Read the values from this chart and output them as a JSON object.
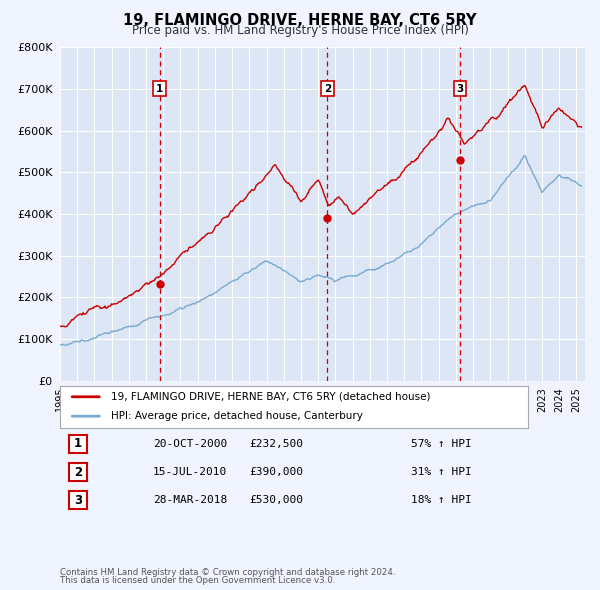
{
  "title": "19, FLAMINGO DRIVE, HERNE BAY, CT6 5RY",
  "subtitle": "Price paid vs. HM Land Registry's House Price Index (HPI)",
  "ylim": [
    0,
    800000
  ],
  "xlim_start": 1995.0,
  "xlim_end": 2025.5,
  "background_color": "#f0f4ff",
  "plot_bg_color": "#dce6f5",
  "grid_color": "#ffffff",
  "red_line_color": "#cc0000",
  "blue_line_color": "#7aaad0",
  "sale_marker_color": "#cc0000",
  "vline_color": "#cc0000",
  "sales": [
    {
      "date_label": "20-OCT-2000",
      "year": 2000.79,
      "price": 232500,
      "label": "1",
      "pct": "57%",
      "dir": "↑"
    },
    {
      "date_label": "15-JUL-2010",
      "year": 2010.54,
      "price": 390000,
      "label": "2",
      "pct": "31%",
      "dir": "↑"
    },
    {
      "date_label": "28-MAR-2018",
      "year": 2018.23,
      "price": 530000,
      "label": "3",
      "pct": "18%",
      "dir": "↑"
    }
  ],
  "legend_line1": "19, FLAMINGO DRIVE, HERNE BAY, CT6 5RY (detached house)",
  "legend_line2": "HPI: Average price, detached house, Canterbury",
  "footnote1": "Contains HM Land Registry data © Crown copyright and database right 2024.",
  "footnote2": "This data is licensed under the Open Government Licence v3.0.",
  "ytick_labels": [
    "£0",
    "£100K",
    "£200K",
    "£300K",
    "£400K",
    "£500K",
    "£600K",
    "£700K",
    "£800K"
  ],
  "ytick_values": [
    0,
    100000,
    200000,
    300000,
    400000,
    500000,
    600000,
    700000,
    800000
  ]
}
